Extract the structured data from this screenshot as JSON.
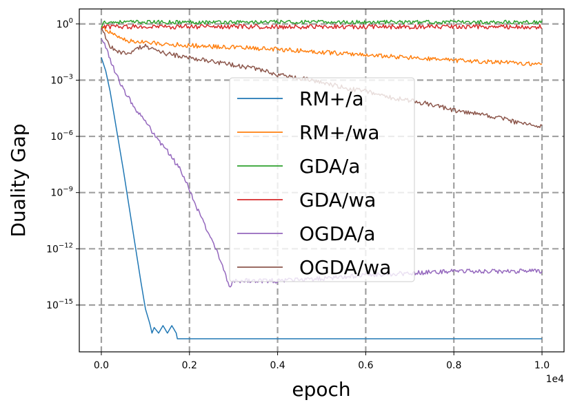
{
  "chart_data": {
    "type": "line",
    "xlabel": "epoch",
    "ylabel": "Duality Gap",
    "x_offset_label": "1e4",
    "xlim": [
      -500,
      10500
    ],
    "ylim_log10": [
      -17.5,
      0.8
    ],
    "x_ticks": [
      {
        "value": 0,
        "label": "0.0"
      },
      {
        "value": 2000,
        "label": "0.2"
      },
      {
        "value": 4000,
        "label": "0.4"
      },
      {
        "value": 6000,
        "label": "0.6"
      },
      {
        "value": 8000,
        "label": "0.8"
      },
      {
        "value": 10000,
        "label": "1.0"
      }
    ],
    "y_ticks": [
      {
        "exp": 0,
        "base": "10",
        "sup": "0"
      },
      {
        "exp": -3,
        "base": "10",
        "sup": "−3"
      },
      {
        "exp": -6,
        "base": "10",
        "sup": "−6"
      },
      {
        "exp": -9,
        "base": "10",
        "sup": "−9"
      },
      {
        "exp": -12,
        "base": "10",
        "sup": "−12"
      },
      {
        "exp": -15,
        "base": "10",
        "sup": "−15"
      }
    ],
    "grid": true,
    "legend_position": "center",
    "series": [
      {
        "name": "RM+/a",
        "color": "#1f77b4",
        "points": [
          [
            0,
            -1.8
          ],
          [
            100,
            -2.5
          ],
          [
            200,
            -3.6
          ],
          [
            300,
            -5.0
          ],
          [
            400,
            -6.4
          ],
          [
            500,
            -7.8
          ],
          [
            600,
            -9.3
          ],
          [
            700,
            -10.8
          ],
          [
            800,
            -12.3
          ],
          [
            900,
            -13.8
          ],
          [
            1000,
            -15.2
          ],
          [
            1100,
            -16.0
          ],
          [
            1150,
            -16.5
          ],
          [
            1200,
            -16.2
          ],
          [
            1300,
            -16.5
          ],
          [
            1400,
            -16.1
          ],
          [
            1500,
            -16.5
          ],
          [
            1600,
            -16.1
          ],
          [
            1700,
            -16.5
          ],
          [
            1720,
            -16.8
          ],
          [
            10000,
            -16.8
          ]
        ],
        "noise": 0
      },
      {
        "name": "RM+/wa",
        "color": "#ff7f0e",
        "points": [
          [
            0,
            -0.1
          ],
          [
            100,
            -0.3
          ],
          [
            300,
            -0.6
          ],
          [
            600,
            -0.9
          ],
          [
            1000,
            -1.0
          ],
          [
            2000,
            -1.15
          ],
          [
            3000,
            -1.25
          ],
          [
            4000,
            -1.35
          ],
          [
            5000,
            -1.5
          ],
          [
            6000,
            -1.65
          ],
          [
            7000,
            -1.8
          ],
          [
            8000,
            -1.95
          ],
          [
            9000,
            -2.05
          ],
          [
            10000,
            -2.15
          ]
        ],
        "noise": 0.12
      },
      {
        "name": "GDA/a",
        "color": "#2ca02c",
        "points": [
          [
            0,
            -0.2
          ],
          [
            50,
            0.1
          ],
          [
            10000,
            0.1
          ]
        ],
        "noise": 0.1
      },
      {
        "name": "GDA/wa",
        "color": "#d62728",
        "points": [
          [
            0,
            -0.3
          ],
          [
            50,
            -0.15
          ],
          [
            10000,
            -0.15
          ]
        ],
        "noise": 0.12
      },
      {
        "name": "OGDA/a",
        "color": "#9467bd",
        "points": [
          [
            0,
            -0.8
          ],
          [
            100,
            -1.2
          ],
          [
            300,
            -2.5
          ],
          [
            500,
            -3.5
          ],
          [
            800,
            -4.6
          ],
          [
            1000,
            -5.2
          ],
          [
            1200,
            -5.9
          ],
          [
            1500,
            -6.8
          ],
          [
            1800,
            -7.8
          ],
          [
            2000,
            -8.8
          ],
          [
            2200,
            -10.0
          ],
          [
            2400,
            -11.0
          ],
          [
            2600,
            -12.0
          ],
          [
            2800,
            -13.3
          ],
          [
            2900,
            -14.0
          ],
          [
            3000,
            -13.7
          ],
          [
            4000,
            -13.7
          ],
          [
            5000,
            -13.6
          ],
          [
            6000,
            -13.4
          ],
          [
            7000,
            -13.3
          ],
          [
            8000,
            -13.2
          ],
          [
            10000,
            -13.2
          ]
        ],
        "noise": 0.12
      },
      {
        "name": "OGDA/wa",
        "color": "#8c564b",
        "points": [
          [
            0,
            -0.2
          ],
          [
            100,
            -0.7
          ],
          [
            200,
            -1.2
          ],
          [
            400,
            -1.5
          ],
          [
            600,
            -1.6
          ],
          [
            800,
            -1.3
          ],
          [
            1000,
            -1.2
          ],
          [
            1200,
            -1.4
          ],
          [
            1500,
            -1.6
          ],
          [
            2000,
            -1.8
          ],
          [
            2500,
            -2.0
          ],
          [
            3000,
            -2.2
          ],
          [
            3500,
            -2.4
          ],
          [
            4000,
            -2.7
          ],
          [
            4500,
            -2.9
          ],
          [
            5000,
            -3.1
          ],
          [
            5500,
            -3.4
          ],
          [
            6000,
            -3.6
          ],
          [
            6500,
            -3.9
          ],
          [
            7000,
            -4.1
          ],
          [
            7500,
            -4.3
          ],
          [
            8000,
            -4.6
          ],
          [
            8500,
            -4.8
          ],
          [
            9000,
            -5.0
          ],
          [
            9500,
            -5.3
          ],
          [
            10000,
            -5.5
          ]
        ],
        "noise": 0.12
      }
    ]
  }
}
